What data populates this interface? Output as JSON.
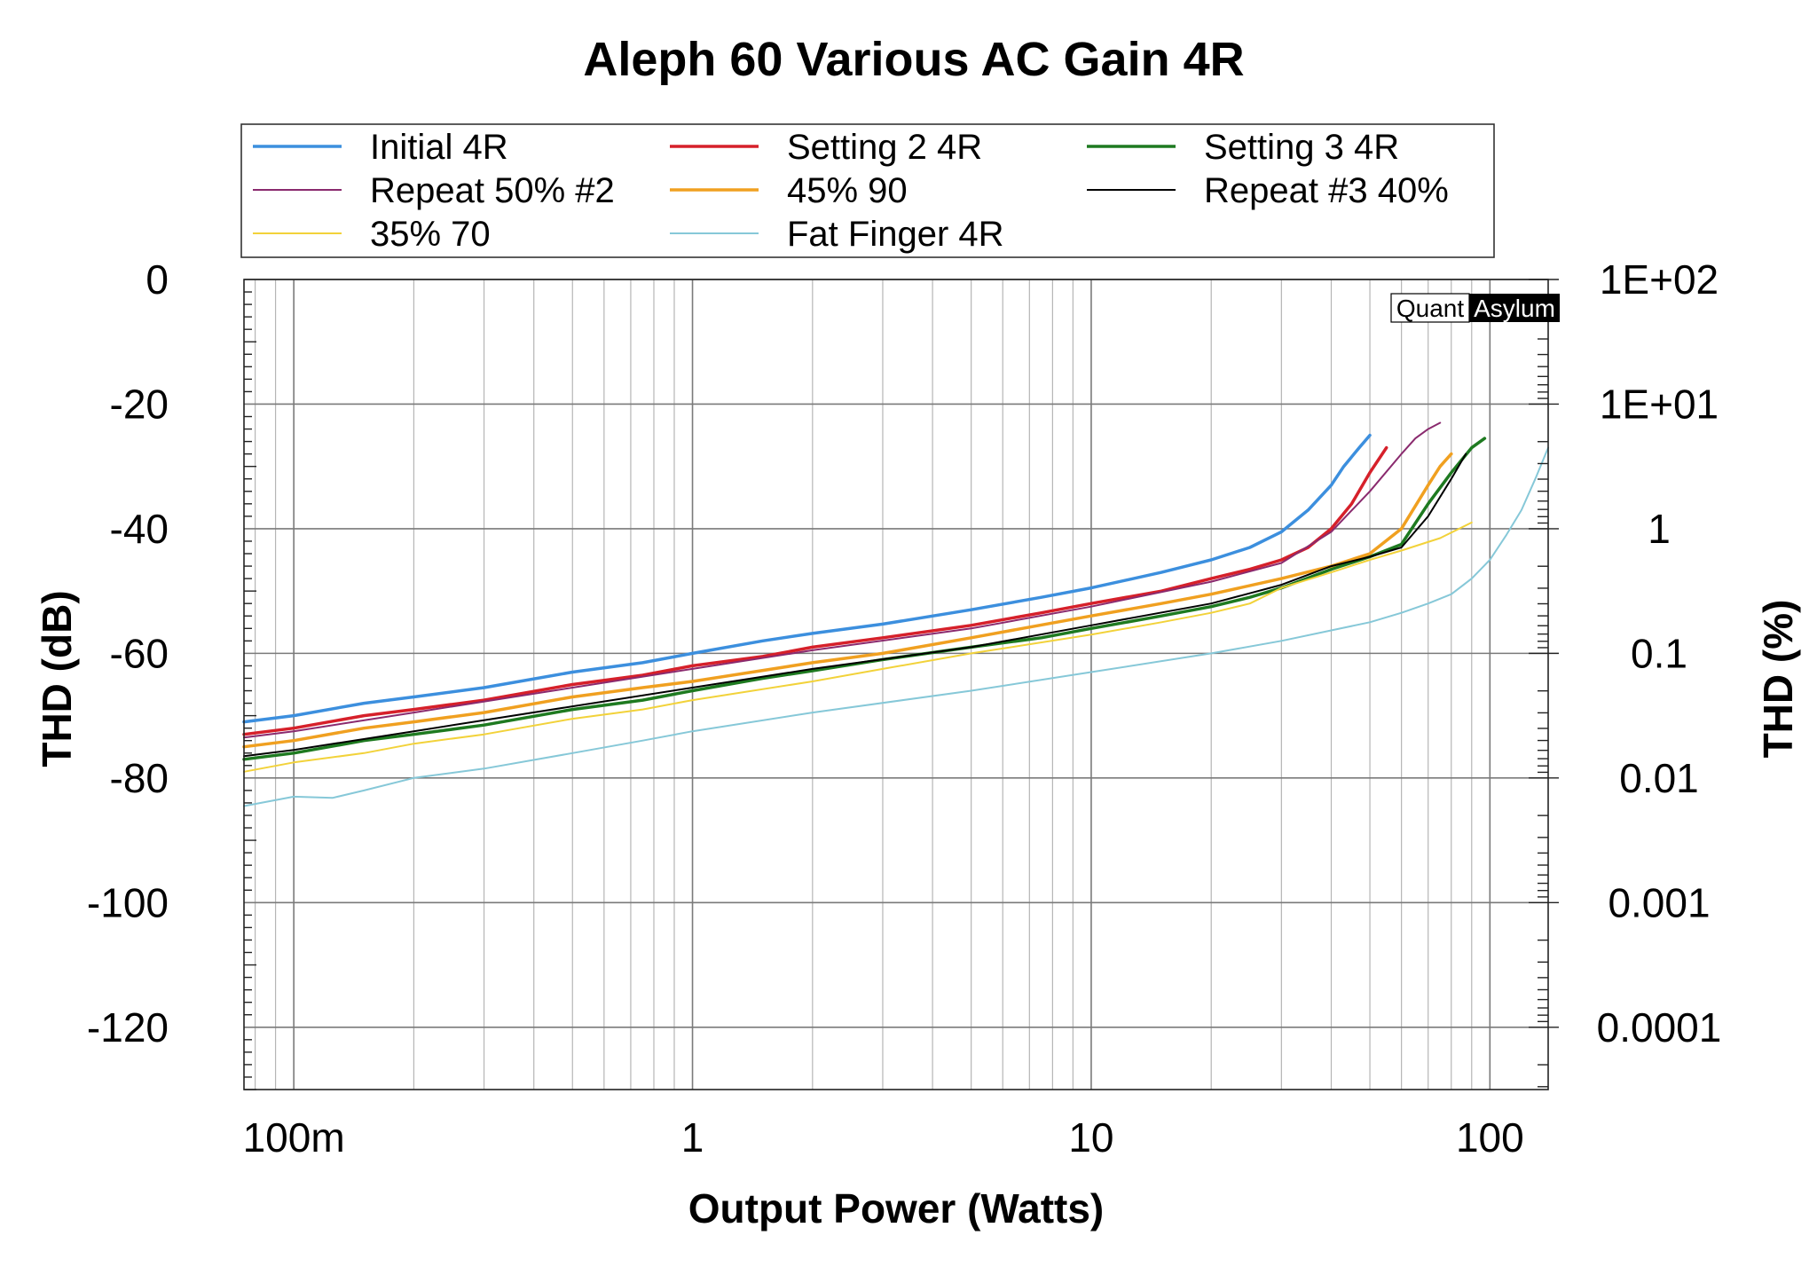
{
  "chart_data": {
    "type": "line",
    "title": "Aleph 60 Various AC Gain 4R",
    "xlabel": "Output Power (Watts)",
    "ylabel": "THD (dB)",
    "y2label": "THD (%)",
    "x_scale": "log",
    "xlim": [
      0.075,
      140
    ],
    "ylim": [
      -130,
      0
    ],
    "x_tick_labels": [
      "100m",
      "1",
      "10",
      "100"
    ],
    "y_tick_labels": [
      "0",
      "-20",
      "-40",
      "-60",
      "-80",
      "-100",
      "-120"
    ],
    "y2_tick_labels": [
      "1E+02",
      "1E+01",
      "1",
      "0.1",
      "0.01",
      "0.001",
      "0.0001"
    ],
    "grid": true,
    "legend_position": "top",
    "watermark": [
      "Quant",
      "Asylum"
    ],
    "series": [
      {
        "name": "Initial 4R",
        "color": "#3c8fde",
        "width": 3.5,
        "x": [
          0.075,
          0.1,
          0.15,
          0.2,
          0.3,
          0.5,
          0.75,
          1,
          1.5,
          2,
          3,
          5,
          7.5,
          10,
          15,
          20,
          25,
          30,
          35,
          40,
          43,
          47,
          50
        ],
        "y": [
          -71,
          -70,
          -68,
          -67,
          -65.5,
          -63,
          -61.5,
          -60,
          -58,
          -56.8,
          -55.3,
          -53,
          -51,
          -49.5,
          -47,
          -45,
          -43,
          -40.5,
          -37,
          -33,
          -30,
          -27,
          -25
        ]
      },
      {
        "name": "Setting 2 4R",
        "color": "#d6202a",
        "width": 3.5,
        "x": [
          0.075,
          0.1,
          0.15,
          0.2,
          0.3,
          0.5,
          0.75,
          1,
          1.5,
          2,
          3,
          5,
          7.5,
          10,
          15,
          20,
          25,
          30,
          35,
          40,
          45,
          50,
          55
        ],
        "y": [
          -73,
          -72,
          -70,
          -69,
          -67.5,
          -65,
          -63.5,
          -62,
          -60.5,
          -59,
          -57.5,
          -55.5,
          -53.5,
          -52,
          -50,
          -48,
          -46.5,
          -45,
          -43,
          -40,
          -36,
          -31,
          -27
        ]
      },
      {
        "name": "Setting 3 4R",
        "color": "#1e7a20",
        "width": 3.5,
        "x": [
          0.075,
          0.1,
          0.15,
          0.2,
          0.3,
          0.5,
          0.75,
          1,
          1.5,
          2,
          3,
          5,
          7.5,
          10,
          15,
          20,
          25,
          30,
          40,
          50,
          60,
          70,
          80,
          90,
          97
        ],
        "y": [
          -77,
          -76,
          -74,
          -73,
          -71.5,
          -69,
          -67.5,
          -66,
          -64,
          -62.8,
          -61,
          -59,
          -57.5,
          -56,
          -54,
          -52.5,
          -51,
          -49.5,
          -46.5,
          -44.5,
          -42.5,
          -36,
          -31,
          -27,
          -25.5
        ]
      },
      {
        "name": "Repeat 50% #2",
        "color": "#8a2a6e",
        "width": 2,
        "x": [
          0.075,
          0.1,
          0.2,
          0.5,
          1,
          2,
          5,
          10,
          20,
          30,
          40,
          50,
          60,
          65,
          70,
          75
        ],
        "y": [
          -73.5,
          -72.5,
          -69.5,
          -65.5,
          -62.5,
          -59.5,
          -56,
          -52.5,
          -48.5,
          -45.5,
          -40.5,
          -34,
          -28,
          -25.5,
          -24,
          -23
        ]
      },
      {
        "name": "45% 90",
        "color": "#f0a020",
        "width": 3.5,
        "x": [
          0.075,
          0.1,
          0.15,
          0.2,
          0.3,
          0.5,
          0.75,
          1,
          2,
          3,
          5,
          10,
          15,
          20,
          30,
          40,
          50,
          60,
          70,
          75,
          80
        ],
        "y": [
          -75,
          -74,
          -72,
          -71,
          -69.5,
          -67,
          -65.5,
          -64.5,
          -61.5,
          -60,
          -57.5,
          -54,
          -52,
          -50.5,
          -48,
          -46,
          -44,
          -40,
          -33,
          -30,
          -28
        ]
      },
      {
        "name": "Repeat #3 40%",
        "color": "#000000",
        "width": 2,
        "x": [
          0.075,
          0.1,
          0.2,
          0.5,
          1,
          2,
          5,
          10,
          20,
          30,
          40,
          50,
          60,
          70,
          80,
          87
        ],
        "y": [
          -76.5,
          -75.5,
          -72.5,
          -68.5,
          -65.5,
          -62.5,
          -59,
          -55.5,
          -52,
          -49,
          -46,
          -44.5,
          -43,
          -38,
          -32,
          -28
        ]
      },
      {
        "name": "35% 70",
        "color": "#f2d23a",
        "width": 2,
        "x": [
          0.075,
          0.1,
          0.15,
          0.2,
          0.3,
          0.5,
          0.75,
          1,
          2,
          3,
          5,
          10,
          15,
          20,
          25,
          30,
          40,
          50,
          60,
          75,
          90
        ],
        "y": [
          -79,
          -77.5,
          -76,
          -74.5,
          -73,
          -70.5,
          -69,
          -67.5,
          -64.5,
          -62.5,
          -60,
          -57,
          -55,
          -53.5,
          -52,
          -49.5,
          -47,
          -45,
          -43.5,
          -41.5,
          -39
        ]
      },
      {
        "name": "Fat Finger 4R",
        "color": "#86c8d8",
        "width": 2,
        "x": [
          0.075,
          0.1,
          0.125,
          0.15,
          0.2,
          0.3,
          0.5,
          0.75,
          1,
          2,
          5,
          10,
          20,
          30,
          50,
          60,
          70,
          80,
          90,
          100,
          110,
          120,
          130,
          140
        ],
        "y": [
          -84.5,
          -83,
          -83.2,
          -82,
          -80,
          -78.5,
          -76,
          -74,
          -72.5,
          -69.5,
          -66,
          -63,
          -60,
          -58,
          -55,
          -53.5,
          -52,
          -50.5,
          -48,
          -45,
          -41,
          -37,
          -32,
          -27
        ]
      }
    ]
  }
}
